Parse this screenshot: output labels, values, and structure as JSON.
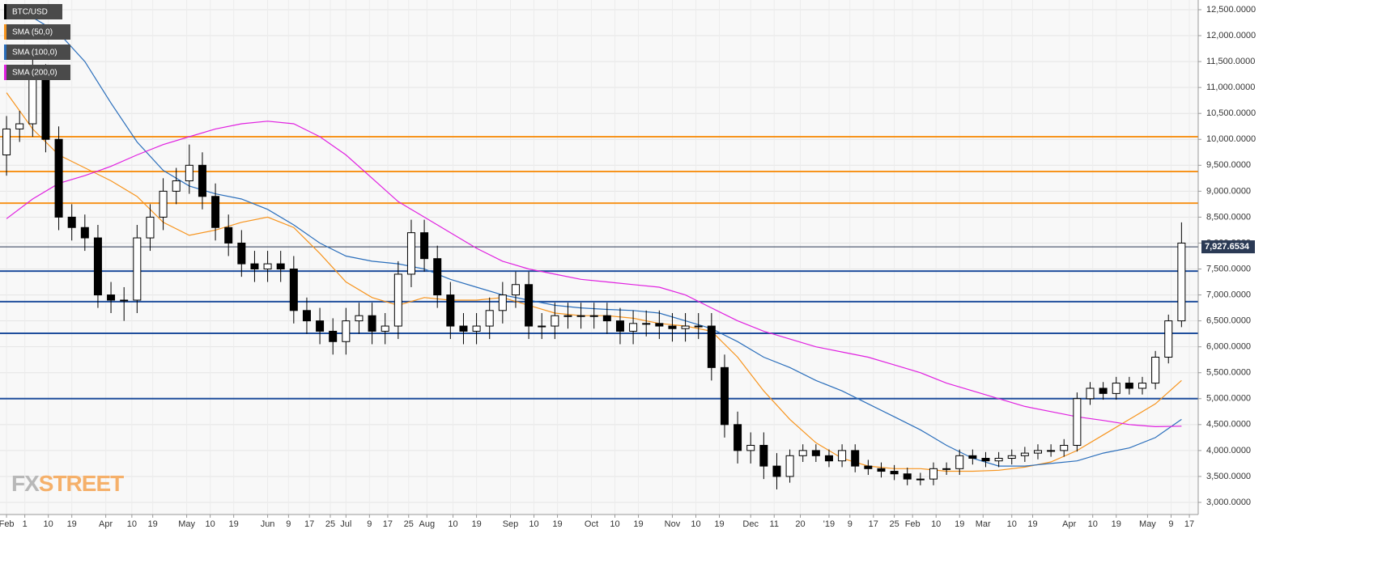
{
  "chart_data": {
    "type": "candlestick",
    "instrument": "BTC/USD",
    "watermark": {
      "part1": "FX",
      "part2": "STREET"
    },
    "up_color": "#ffffff",
    "down_color": "#000000",
    "candle_outline": "#000000",
    "x": [
      0,
      5,
      10,
      15,
      20,
      25,
      30,
      35,
      40,
      45,
      50,
      55,
      60,
      65,
      70,
      75,
      80,
      85,
      90,
      95,
      100,
      105,
      110,
      115,
      120,
      125,
      130,
      135,
      140,
      145,
      150,
      155,
      160,
      165,
      170,
      175,
      180,
      185,
      190,
      195,
      200,
      205,
      210,
      215,
      220,
      225,
      230,
      235,
      240,
      245,
      250,
      255,
      260,
      265,
      270,
      275,
      280,
      285,
      290,
      295,
      300,
      305,
      310,
      315,
      320,
      325,
      330,
      335,
      340,
      345,
      350,
      355,
      360,
      365,
      370,
      375,
      380,
      385,
      390,
      395,
      400,
      405,
      410,
      415,
      420,
      425,
      430,
      435,
      440,
      445,
      450
    ],
    "open": [
      9700,
      10200,
      10300,
      11200,
      10000,
      8500,
      8300,
      8100,
      7000,
      6900,
      6900,
      8100,
      8500,
      9000,
      9200,
      9500,
      8900,
      8300,
      8000,
      7600,
      7500,
      7600,
      7500,
      6700,
      6500,
      6300,
      6100,
      6500,
      6600,
      6300,
      6400,
      7400,
      8200,
      7700,
      7000,
      6400,
      6300,
      6400,
      6700,
      7000,
      7200,
      6400,
      6400,
      6600,
      6600,
      6600,
      6600,
      6500,
      6300,
      6450,
      6450,
      6400,
      6350,
      6400,
      6400,
      5600,
      4500,
      4000,
      4100,
      3700,
      3500,
      3900,
      4000,
      3900,
      3800,
      4000,
      3700,
      3650,
      3600,
      3550,
      3450,
      3450,
      3650,
      3650,
      3900,
      3850,
      3800,
      3850,
      3900,
      3950,
      4000,
      4000,
      4100,
      5000,
      5200,
      5100,
      5300,
      5200,
      5300,
      5800,
      6500
    ],
    "high": [
      10450,
      10550,
      11600,
      11450,
      10250,
      8750,
      8550,
      8350,
      7250,
      7150,
      8350,
      8750,
      9250,
      9450,
      9900,
      9750,
      9150,
      8550,
      8250,
      7850,
      7850,
      7850,
      7750,
      6950,
      6750,
      6550,
      6750,
      6850,
      6850,
      6650,
      7650,
      8450,
      8450,
      7950,
      7250,
      6650,
      6650,
      6950,
      7250,
      7450,
      7450,
      6650,
      6850,
      6850,
      6850,
      6850,
      6850,
      6750,
      6700,
      6700,
      6700,
      6650,
      6650,
      6650,
      6650,
      5850,
      4750,
      4350,
      4350,
      3950,
      4020,
      4120,
      4120,
      4020,
      4120,
      4120,
      3820,
      3770,
      3720,
      3670,
      3570,
      3770,
      3770,
      4020,
      4020,
      3970,
      3970,
      4020,
      4070,
      4120,
      4120,
      4220,
      5120,
      5320,
      5320,
      5420,
      5420,
      5420,
      5920,
      6620,
      8400
    ],
    "low": [
      9300,
      9950,
      10050,
      9750,
      8250,
      8050,
      7850,
      6750,
      6650,
      6500,
      6650,
      7850,
      8250,
      8750,
      8950,
      8650,
      8050,
      7750,
      7350,
      7250,
      7250,
      7250,
      6450,
      6250,
      6050,
      5850,
      5850,
      6250,
      6050,
      6050,
      6150,
      7150,
      7450,
      6750,
      6150,
      6050,
      6050,
      6150,
      6450,
      6750,
      6150,
      6150,
      6150,
      6350,
      6350,
      6350,
      6250,
      6050,
      6050,
      6200,
      6150,
      6100,
      6100,
      6150,
      5350,
      4250,
      3750,
      3750,
      3450,
      3250,
      3380,
      3780,
      3780,
      3680,
      3680,
      3580,
      3530,
      3480,
      3430,
      3330,
      3330,
      3330,
      3530,
      3530,
      3730,
      3680,
      3680,
      3730,
      3780,
      3830,
      3880,
      3880,
      3980,
      4880,
      4980,
      4980,
      5080,
      5080,
      5180,
      5680,
      6380
    ],
    "close": [
      10200,
      10300,
      11200,
      10000,
      8500,
      8300,
      8100,
      7000,
      6900,
      6900,
      8100,
      8500,
      9000,
      9200,
      9500,
      8900,
      8300,
      8000,
      7600,
      7500,
      7600,
      7500,
      6700,
      6500,
      6300,
      6100,
      6500,
      6600,
      6300,
      6400,
      7400,
      8200,
      7700,
      7000,
      6400,
      6300,
      6400,
      6700,
      7000,
      7200,
      6400,
      6400,
      6600,
      6600,
      6600,
      6600,
      6500,
      6300,
      6450,
      6450,
      6400,
      6350,
      6400,
      6400,
      5600,
      4500,
      4000,
      4100,
      3700,
      3500,
      3900,
      4000,
      3900,
      3800,
      4000,
      3700,
      3650,
      3600,
      3550,
      3450,
      3450,
      3650,
      3650,
      3900,
      3850,
      3800,
      3850,
      3900,
      3950,
      4000,
      4000,
      4100,
      5000,
      5200,
      5100,
      5300,
      5200,
      5300,
      5800,
      6500,
      8000
    ],
    "sma_x": [
      0,
      10,
      20,
      30,
      40,
      50,
      60,
      70,
      80,
      90,
      100,
      110,
      120,
      130,
      140,
      150,
      160,
      170,
      180,
      190,
      200,
      210,
      220,
      230,
      240,
      250,
      260,
      270,
      280,
      290,
      300,
      310,
      320,
      330,
      340,
      350,
      360,
      370,
      380,
      390,
      400,
      410,
      420,
      430,
      440,
      450
    ],
    "sma": [
      {
        "name": "SMA (50,0)",
        "color": "#f7941d",
        "values": [
          10900,
          10200,
          9700,
          9450,
          9200,
          8900,
          8400,
          8150,
          8250,
          8400,
          8500,
          8300,
          7800,
          7250,
          6950,
          6800,
          6950,
          6900,
          6900,
          6950,
          6800,
          6650,
          6600,
          6600,
          6550,
          6450,
          6400,
          6300,
          5800,
          5150,
          4600,
          4150,
          3850,
          3700,
          3650,
          3650,
          3600,
          3600,
          3620,
          3680,
          3780,
          4000,
          4300,
          4600,
          4900,
          5350
        ]
      },
      {
        "name": "SMA (100,0)",
        "color": "#2a6ebb",
        "values": [
          12450,
          12350,
          12050,
          11500,
          10700,
          9950,
          9400,
          9100,
          8950,
          8850,
          8650,
          8350,
          8000,
          7750,
          7650,
          7600,
          7500,
          7300,
          7150,
          7000,
          6900,
          6800,
          6750,
          6720,
          6700,
          6650,
          6500,
          6350,
          6100,
          5800,
          5600,
          5350,
          5150,
          4900,
          4650,
          4400,
          4100,
          3850,
          3700,
          3700,
          3750,
          3800,
          3950,
          4050,
          4250,
          4600
        ]
      },
      {
        "name": "SMA (200,0)",
        "color": "#e020e0",
        "values": [
          8470,
          8850,
          9150,
          9300,
          9480,
          9700,
          9900,
          10050,
          10200,
          10300,
          10350,
          10300,
          10050,
          9700,
          9250,
          8800,
          8500,
          8200,
          7900,
          7650,
          7500,
          7400,
          7300,
          7250,
          7200,
          7150,
          7000,
          6750,
          6500,
          6300,
          6150,
          6000,
          5900,
          5800,
          5650,
          5500,
          5300,
          5150,
          5000,
          4850,
          4750,
          4650,
          4580,
          4500,
          4460,
          4470
        ]
      }
    ],
    "resistance_levels": [
      10050,
      9380,
      8770
    ],
    "resistance_color": "#f7941d",
    "support_levels": [
      7460,
      6870,
      6260,
      5000
    ],
    "support_color": "#1f4e9c",
    "last_price": {
      "value": 7927.6534,
      "label": "7,927.6534"
    },
    "last_price_color": "#2b3a55",
    "grid": true,
    "xlim": [
      -2.5,
      456.4
    ],
    "ylim": [
      2766,
      12687
    ],
    "yticks": [
      {
        "value": 3000,
        "label": "3,000.0000"
      },
      {
        "value": 3500,
        "label": "3,500.0000"
      },
      {
        "value": 4000,
        "label": "4,000.0000"
      },
      {
        "value": 4500,
        "label": "4,500.0000"
      },
      {
        "value": 5000,
        "label": "5,000.0000"
      },
      {
        "value": 5500,
        "label": "5,500.0000"
      },
      {
        "value": 6000,
        "label": "6,000.0000"
      },
      {
        "value": 6500,
        "label": "6,500.0000"
      },
      {
        "value": 7000,
        "label": "7,000.0000"
      },
      {
        "value": 7500,
        "label": "7,500.0000"
      },
      {
        "value": 8000,
        "label": "8,000.0000"
      },
      {
        "value": 8500,
        "label": "8,500.0000"
      },
      {
        "value": 9000,
        "label": "9,000.0000"
      },
      {
        "value": 9500,
        "label": "9,500.0000"
      },
      {
        "value": 10000,
        "label": "10,000.0000"
      },
      {
        "value": 10500,
        "label": "10,500.0000"
      },
      {
        "value": 11000,
        "label": "11,000.0000"
      },
      {
        "value": 11500,
        "label": "11,500.0000"
      },
      {
        "value": 12000,
        "label": "12,000.0000"
      },
      {
        "value": 12500,
        "label": "12,500.0000"
      }
    ],
    "xticks": [
      {
        "value": 0,
        "label": "Feb"
      },
      {
        "value": 7,
        "label": "1"
      },
      {
        "value": 16,
        "label": "10"
      },
      {
        "value": 25,
        "label": "19"
      },
      {
        "value": 38,
        "label": "Apr"
      },
      {
        "value": 48,
        "label": "10"
      },
      {
        "value": 56,
        "label": "19"
      },
      {
        "value": 69,
        "label": "May"
      },
      {
        "value": 78,
        "label": "10"
      },
      {
        "value": 87,
        "label": "19"
      },
      {
        "value": 100,
        "label": "Jun"
      },
      {
        "value": 108,
        "label": "9"
      },
      {
        "value": 116,
        "label": "17"
      },
      {
        "value": 124,
        "label": "25"
      },
      {
        "value": 130,
        "label": "Jul"
      },
      {
        "value": 139,
        "label": "9"
      },
      {
        "value": 146,
        "label": "17"
      },
      {
        "value": 154,
        "label": "25"
      },
      {
        "value": 161,
        "label": "Aug"
      },
      {
        "value": 171,
        "label": "10"
      },
      {
        "value": 180,
        "label": "19"
      },
      {
        "value": 193,
        "label": "Sep"
      },
      {
        "value": 202,
        "label": "10"
      },
      {
        "value": 211,
        "label": "19"
      },
      {
        "value": 224,
        "label": "Oct"
      },
      {
        "value": 233,
        "label": "10"
      },
      {
        "value": 242,
        "label": "19"
      },
      {
        "value": 255,
        "label": "Nov"
      },
      {
        "value": 264,
        "label": "10"
      },
      {
        "value": 273,
        "label": "19"
      },
      {
        "value": 285,
        "label": "Dec"
      },
      {
        "value": 294,
        "label": "11"
      },
      {
        "value": 304,
        "label": "20"
      },
      {
        "value": 315,
        "label": "'19"
      },
      {
        "value": 323,
        "label": "9"
      },
      {
        "value": 332,
        "label": "17"
      },
      {
        "value": 340,
        "label": "25"
      },
      {
        "value": 347,
        "label": "Feb"
      },
      {
        "value": 356,
        "label": "10"
      },
      {
        "value": 365,
        "label": "19"
      },
      {
        "value": 374,
        "label": "Mar"
      },
      {
        "value": 385,
        "label": "10"
      },
      {
        "value": 393,
        "label": "19"
      },
      {
        "value": 407,
        "label": "Apr"
      },
      {
        "value": 416,
        "label": "10"
      },
      {
        "value": 425,
        "label": "19"
      },
      {
        "value": 437,
        "label": "May"
      },
      {
        "value": 446,
        "label": "9"
      },
      {
        "value": 453,
        "label": "17"
      }
    ]
  }
}
